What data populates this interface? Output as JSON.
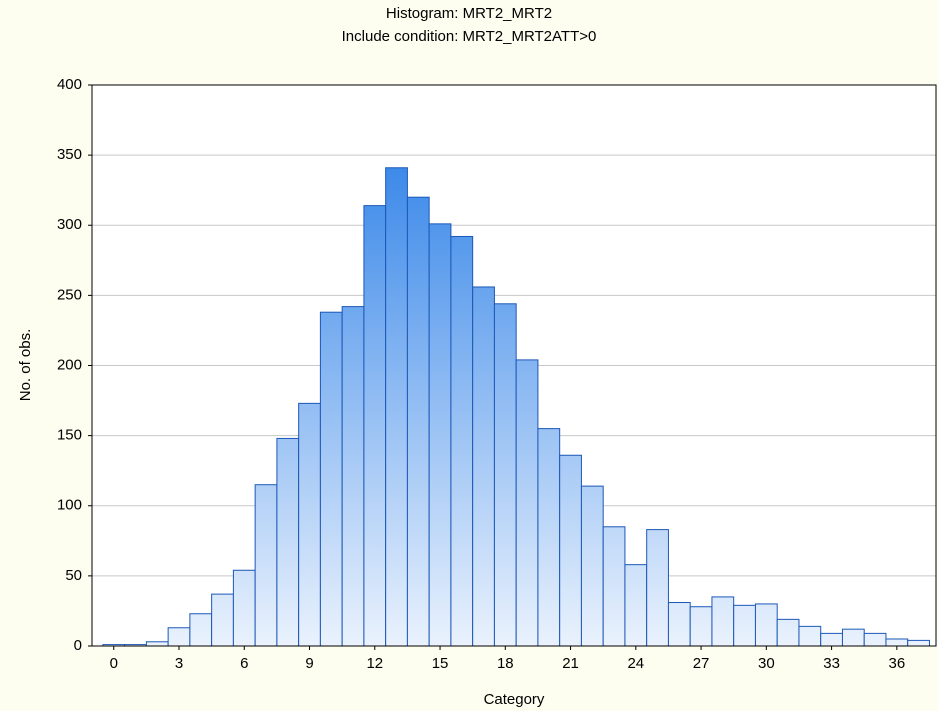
{
  "chart_data": {
    "type": "histogram",
    "title": "Histogram: MRT2_MRT2",
    "subtitle": "Include condition: MRT2_MRT2ATT>0",
    "x_label": "Category",
    "y_label": "No. of obs.",
    "bins": [
      -0.5,
      0.5,
      1.5,
      2.5,
      3.5,
      4.5,
      5.5,
      6.5,
      7.5,
      8.5,
      9.5,
      10.5,
      11.5,
      12.5,
      13.5,
      14.5,
      15.5,
      16.5,
      17.5,
      18.5,
      19.5,
      20.5,
      21.5,
      22.5,
      23.5,
      24.5,
      25.5,
      26.5,
      27.5,
      28.5,
      29.5,
      30.5,
      31.5,
      32.5,
      33.5,
      34.5,
      35.5,
      36.5,
      37.5
    ],
    "values": [
      1,
      1,
      3,
      13,
      23,
      37,
      54,
      115,
      148,
      173,
      238,
      242,
      314,
      341,
      320,
      301,
      292,
      256,
      244,
      204,
      155,
      136,
      114,
      85,
      58,
      83,
      31,
      28,
      35,
      29,
      30,
      19,
      14,
      9,
      12,
      9,
      5,
      4
    ],
    "color": "#1f78e6",
    "xlim": [
      -1,
      37.8
    ],
    "xticks": [
      0,
      3,
      6,
      9,
      12,
      15,
      18,
      21,
      24,
      27,
      30,
      33,
      36
    ],
    "ylim": [
      0,
      400
    ],
    "yticks": [
      0,
      50,
      100,
      150,
      200,
      250,
      300,
      350,
      400
    ],
    "grid": true
  }
}
